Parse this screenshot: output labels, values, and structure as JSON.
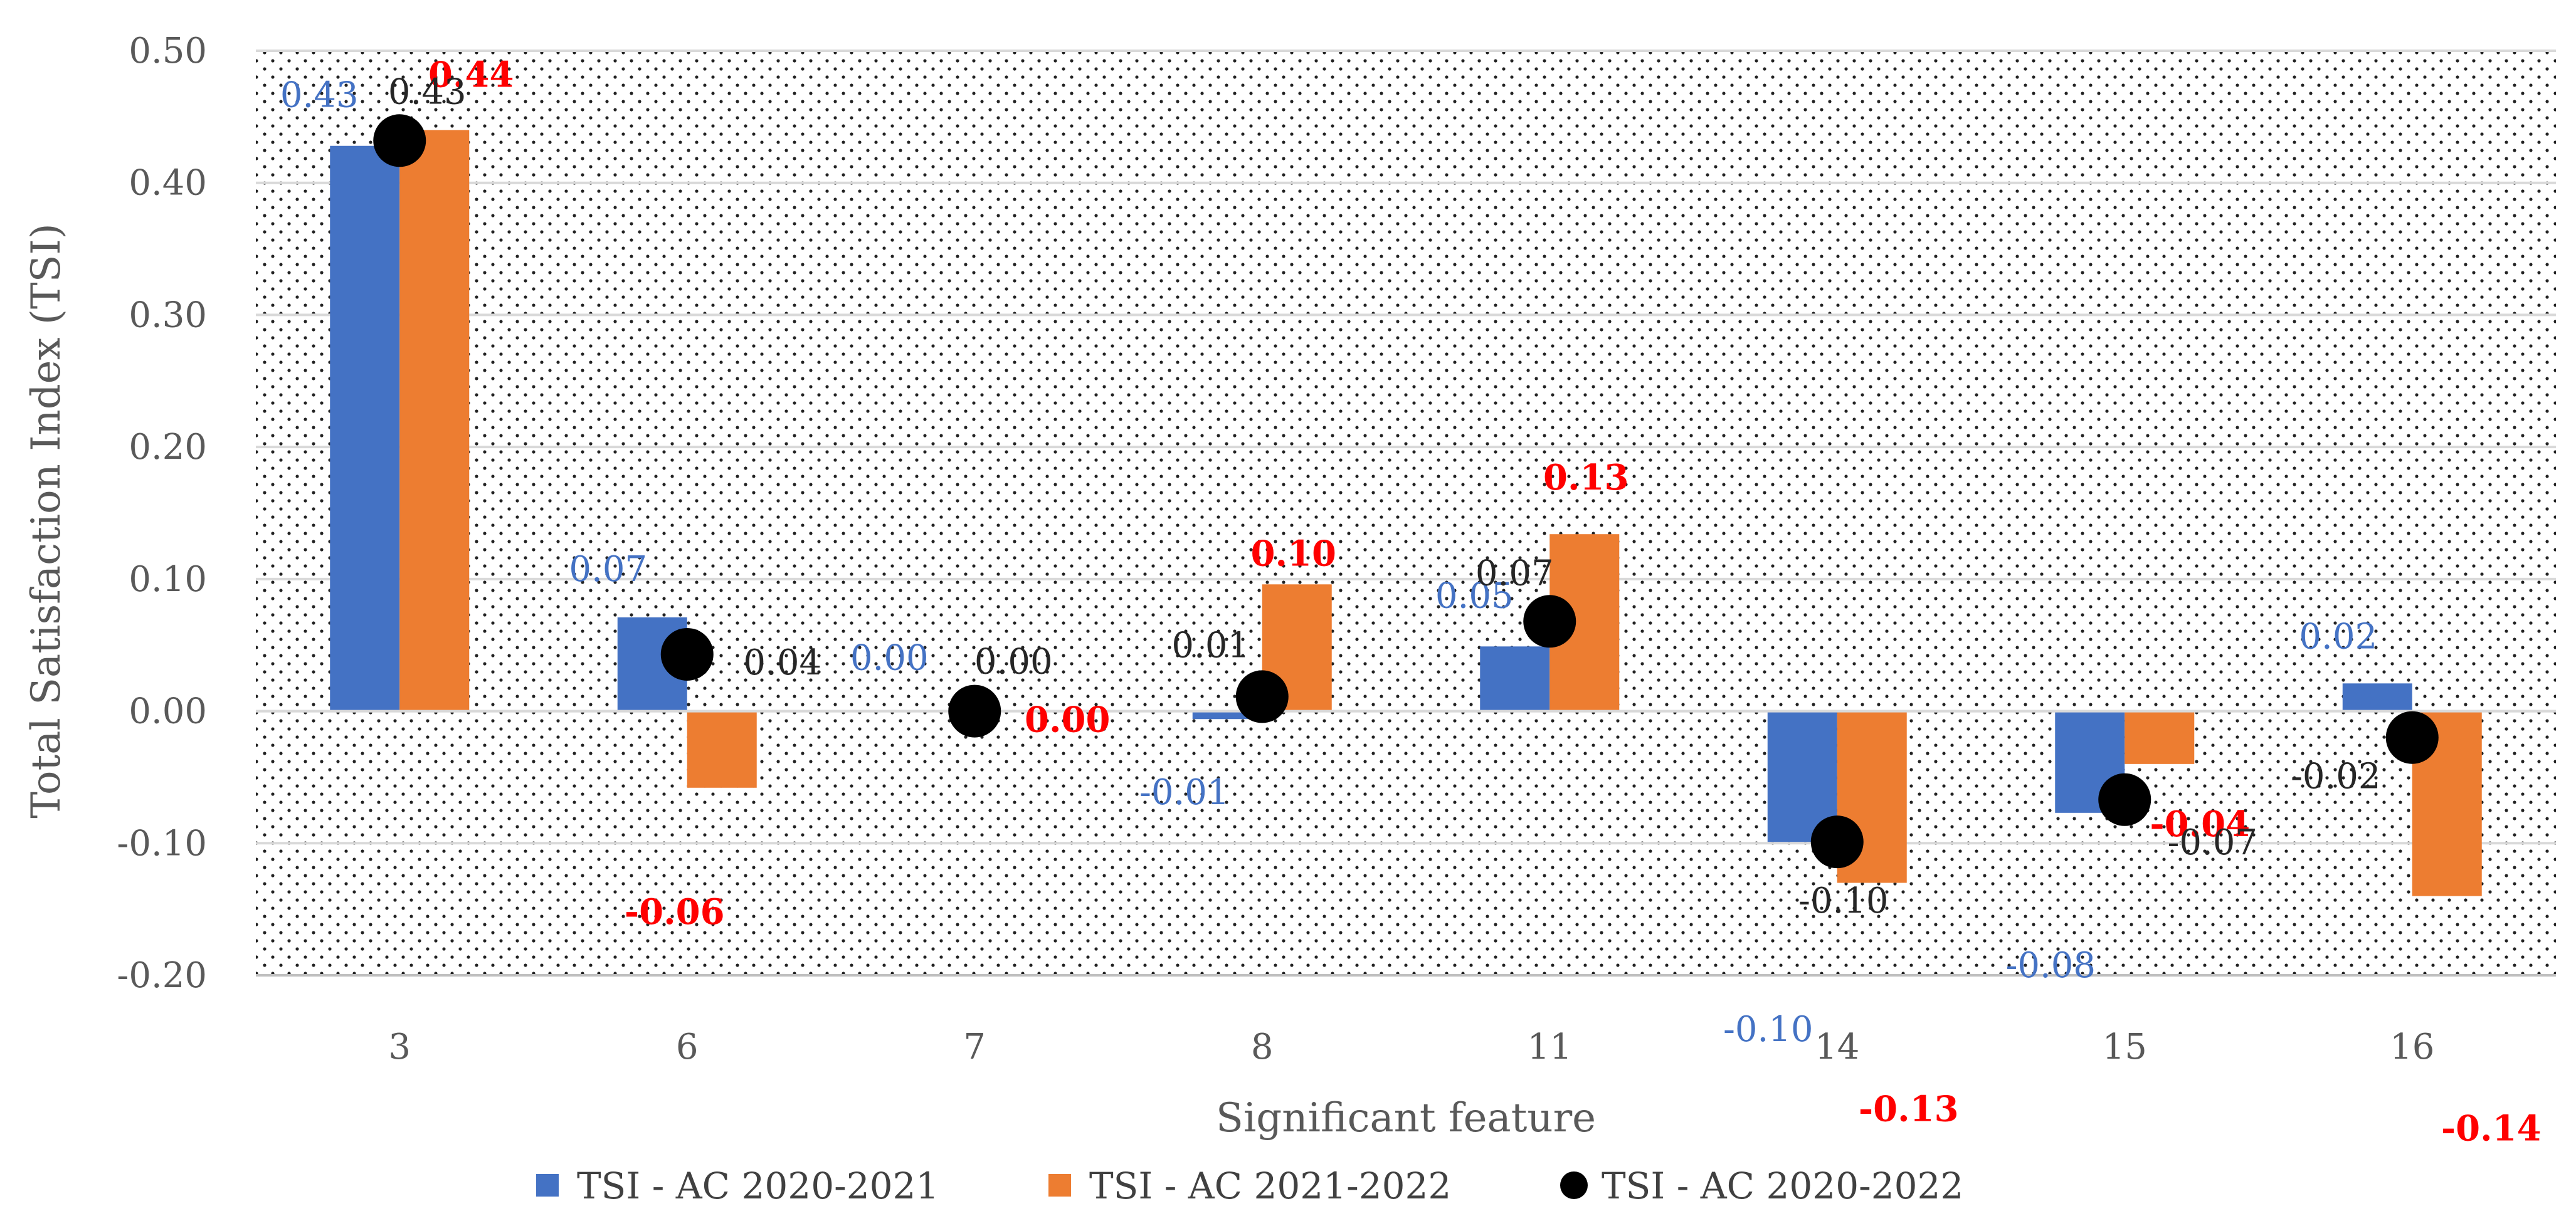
{
  "chart_data": {
    "type": "bar",
    "xlabel": "Significant feature",
    "ylabel": "Total Satisfaction Index (TSI)",
    "categories": [
      "3",
      "6",
      "7",
      "8",
      "11",
      "14",
      "15",
      "16"
    ],
    "ylim": [
      -0.2,
      0.5
    ],
    "y_ticks": [
      "-0.20",
      "-0.10",
      "0.00",
      "0.10",
      "0.20",
      "0.30",
      "0.40",
      "0.50"
    ],
    "grid": true,
    "legend_position": "bottom",
    "series": [
      {
        "name": "TSI - AC 2020-2021",
        "kind": "bar",
        "color": "#4472C4",
        "label_color": "#4472C4",
        "values": [
          0.428,
          0.071,
          0.0,
          -0.006,
          0.049,
          -0.099,
          -0.077,
          0.021
        ],
        "labels": [
          "0.43",
          "0.07",
          "0.00",
          "-0.01",
          "0.05",
          "-0.10",
          "-0.08",
          "0.02"
        ]
      },
      {
        "name": "TSI - AC 2021-2022",
        "kind": "bar",
        "color": "#ED7D31",
        "label_color": "#FF0000",
        "values": [
          0.44,
          -0.058,
          0.0,
          0.096,
          0.134,
          -0.13,
          -0.04,
          -0.14
        ],
        "labels": [
          "0.44",
          "-0.06",
          "0.00",
          "0.10",
          "0.13",
          "-0.13",
          "-0.04",
          "-0.14"
        ]
      },
      {
        "name": "TSI - AC 2020-2022",
        "kind": "point",
        "color": "#000000",
        "label_color": "#262626",
        "values": [
          0.432,
          0.043,
          0.0,
          0.011,
          0.068,
          -0.099,
          -0.067,
          -0.02
        ],
        "labels": [
          "0.43",
          "0.04",
          "0.00",
          "0.01",
          "0.07",
          "-0.10",
          "-0.07",
          "-0.02"
        ]
      }
    ]
  }
}
